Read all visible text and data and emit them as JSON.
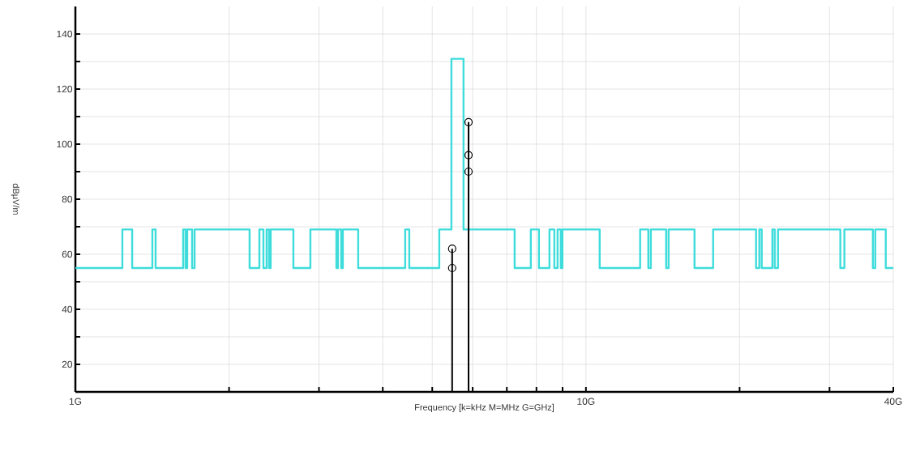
{
  "chart_data": {
    "type": "step",
    "xlabel": "Frequency [k=kHz M=MHz G=GHz]",
    "ylabel": "dBµV/m",
    "log": "x",
    "grid": true,
    "xlim": [
      1,
      40
    ],
    "ylim": [
      10,
      150
    ],
    "xticks": [
      {
        "value": 1,
        "label": "1G"
      },
      {
        "value": 2,
        "label": null
      },
      {
        "value": 3,
        "label": null
      },
      {
        "value": 4,
        "label": null
      },
      {
        "value": 5,
        "label": null
      },
      {
        "value": 6,
        "label": null
      },
      {
        "value": 7,
        "label": null
      },
      {
        "value": 8,
        "label": null
      },
      {
        "value": 9,
        "label": null
      },
      {
        "value": 10,
        "label": "10G"
      },
      {
        "value": 20,
        "label": null
      },
      {
        "value": 30,
        "label": null
      },
      {
        "value": 40,
        "label": "40G"
      }
    ],
    "yticks": [
      20,
      {
        "value": 30,
        "label": null
      },
      40,
      {
        "value": 50,
        "label": null
      },
      60,
      {
        "value": 70,
        "label": null
      },
      80,
      {
        "value": 90,
        "label": null
      },
      100,
      {
        "value": 110,
        "label": null
      },
      120,
      {
        "value": 130,
        "label": null
      },
      140
    ],
    "series": [
      {
        "color": "#3fdcdc",
        "x": [
          1,
          1.236,
          1.292,
          1.415,
          1.436,
          1.626,
          1.644,
          1.656,
          1.693,
          1.712,
          2.194,
          2.293,
          2.335,
          2.369,
          2.395,
          2.413,
          2.673,
          2.886,
          3.245,
          3.268,
          3.316,
          3.341,
          3.581,
          4.426,
          4.508,
          5.161,
          5.452,
          5.758,
          7.251,
          7.801,
          8.09,
          8.484,
          8.672,
          8.8,
          8.929,
          8.995,
          10.64,
          12.77,
          13.25,
          13.4,
          14.36,
          14.52,
          16.32,
          17.75,
          21.54,
          21.86,
          22.1,
          23.18,
          23.43,
          23.78,
          31.5,
          32.08,
          36.48,
          36.88,
          38.67,
          40
        ],
        "values": [
          55,
          69,
          55,
          69,
          55,
          69,
          55,
          69,
          55,
          69,
          55,
          69,
          55,
          69,
          55,
          69,
          55,
          69,
          55,
          69,
          55,
          69,
          55,
          69,
          55,
          69,
          131,
          69,
          55,
          69,
          55,
          69,
          55,
          69,
          55,
          69,
          55,
          69,
          55,
          69,
          55,
          69,
          55,
          69,
          55,
          69,
          55,
          69,
          55,
          69,
          55,
          69,
          55,
          69,
          55,
          55
        ]
      },
      {
        "type": "lollipop",
        "color": "#000000",
        "marker": "circle",
        "x": [
          5.47,
          5.89
        ],
        "values": [
          62,
          108
        ]
      },
      {
        "type": "scatter",
        "color": "#000000",
        "marker": "circle",
        "x": [
          5.47,
          5.89,
          5.89
        ],
        "values": [
          55,
          96,
          90
        ]
      }
    ]
  }
}
